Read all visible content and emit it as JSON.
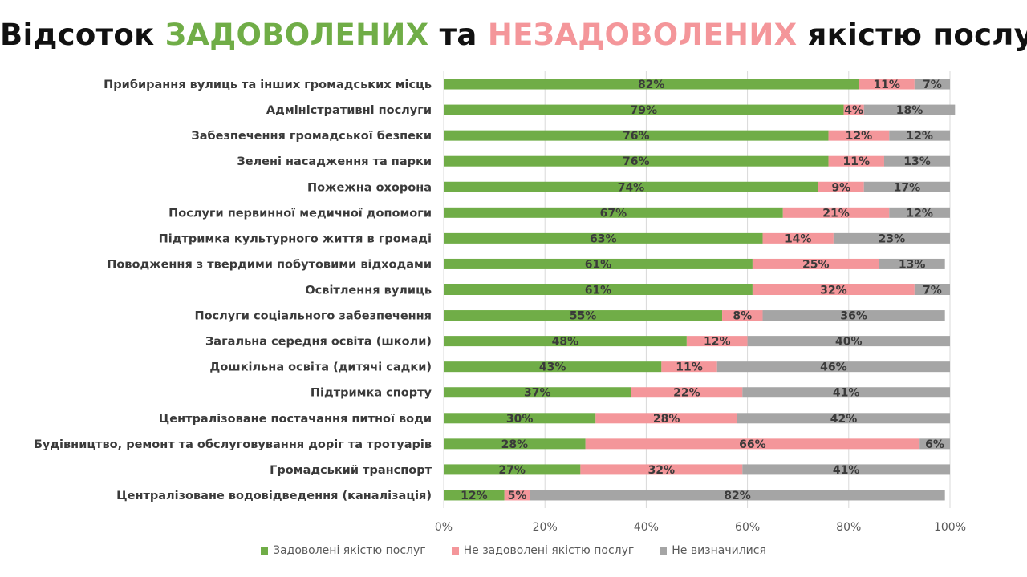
{
  "title": {
    "part1": "Відсоток",
    "part2": "ЗАДОВОЛЕНИХ",
    "part3": "та",
    "part4": "НЕЗАДОВОЛЕНИХ",
    "part5": "якістю послуг"
  },
  "colors": {
    "satisfied": "#70ad47",
    "unsatisfied": "#f4969a",
    "undecided": "#a5a5a5",
    "grid": "#d9d9d9"
  },
  "chart_data": {
    "type": "bar",
    "orientation": "horizontal",
    "stacked": true,
    "title": "Відсоток ЗАДОВОЛЕНИХ та НЕЗАДОВОЛЕНИХ якістю послуг",
    "xlim": [
      0,
      100
    ],
    "x_ticks": [
      "0%",
      "20%",
      "40%",
      "60%",
      "80%",
      "100%"
    ],
    "x_tick_values": [
      0,
      20,
      40,
      60,
      80,
      100
    ],
    "grid": true,
    "legend_position": "bottom",
    "categories": [
      "Прибирання вулиць та інших громадських місць",
      "Адміністративні послуги",
      "Забезпечення громадської безпеки",
      "Зелені насадження та парки",
      "Пожежна охорона",
      "Послуги первинної медичної допомоги",
      "Підтримка культурного життя в громаді",
      "Поводження з твердими побутовими відходами",
      "Освітлення вулиць",
      "Послуги соціального забезпечення",
      "Загальна середня освіта (школи)",
      "Дошкільна освіта (дитячі садки)",
      "Підтримка спорту",
      "Централізоване постачання питної води",
      "Будівництво, ремонт та обслуговування доріг та тротуарів",
      "Громадський транспорт",
      "Централізоване водовідведення (каналізація)"
    ],
    "series": [
      {
        "name": "Задоволені якістю послуг",
        "values": [
          82,
          79,
          76,
          76,
          74,
          67,
          63,
          61,
          61,
          55,
          48,
          43,
          37,
          30,
          28,
          27,
          12
        ]
      },
      {
        "name": "Не задоволені якістю послуг",
        "values": [
          11,
          4,
          12,
          11,
          9,
          21,
          14,
          25,
          32,
          8,
          12,
          11,
          22,
          28,
          66,
          32,
          5
        ]
      },
      {
        "name": "Не визначилися",
        "values": [
          7,
          18,
          12,
          13,
          17,
          12,
          23,
          13,
          7,
          36,
          40,
          46,
          41,
          42,
          6,
          41,
          82
        ]
      }
    ]
  }
}
